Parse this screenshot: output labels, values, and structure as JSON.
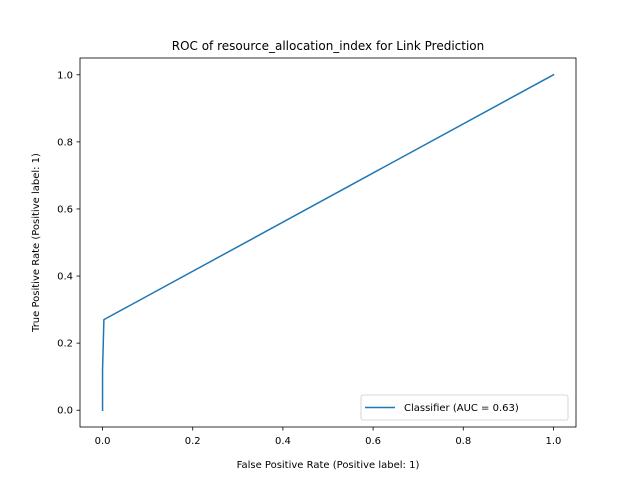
{
  "chart_data": {
    "type": "line",
    "title": "ROC of resource_allocation_index for Link Prediction",
    "xlabel": "False Positive Rate (Positive label: 1)",
    "ylabel": "True Positive Rate (Positive label: 1)",
    "xlim": [
      -0.05,
      1.05
    ],
    "ylim": [
      -0.05,
      1.05
    ],
    "x_ticks": [
      0.0,
      0.2,
      0.4,
      0.6,
      0.8,
      1.0
    ],
    "y_ticks": [
      0.0,
      0.2,
      0.4,
      0.6,
      0.8,
      1.0
    ],
    "x_tick_labels": [
      "0.0",
      "0.2",
      "0.4",
      "0.6",
      "0.8",
      "1.0"
    ],
    "y_tick_labels": [
      "0.0",
      "0.2",
      "0.4",
      "0.6",
      "0.8",
      "1.0"
    ],
    "grid": false,
    "legend_position": "lower-right",
    "series": [
      {
        "name": "Classifier (AUC = 0.63)",
        "color": "#1f77b4",
        "x": [
          0.0,
          0.0,
          0.003,
          1.0
        ],
        "y": [
          0.0,
          0.12,
          0.27,
          1.0
        ]
      }
    ]
  }
}
